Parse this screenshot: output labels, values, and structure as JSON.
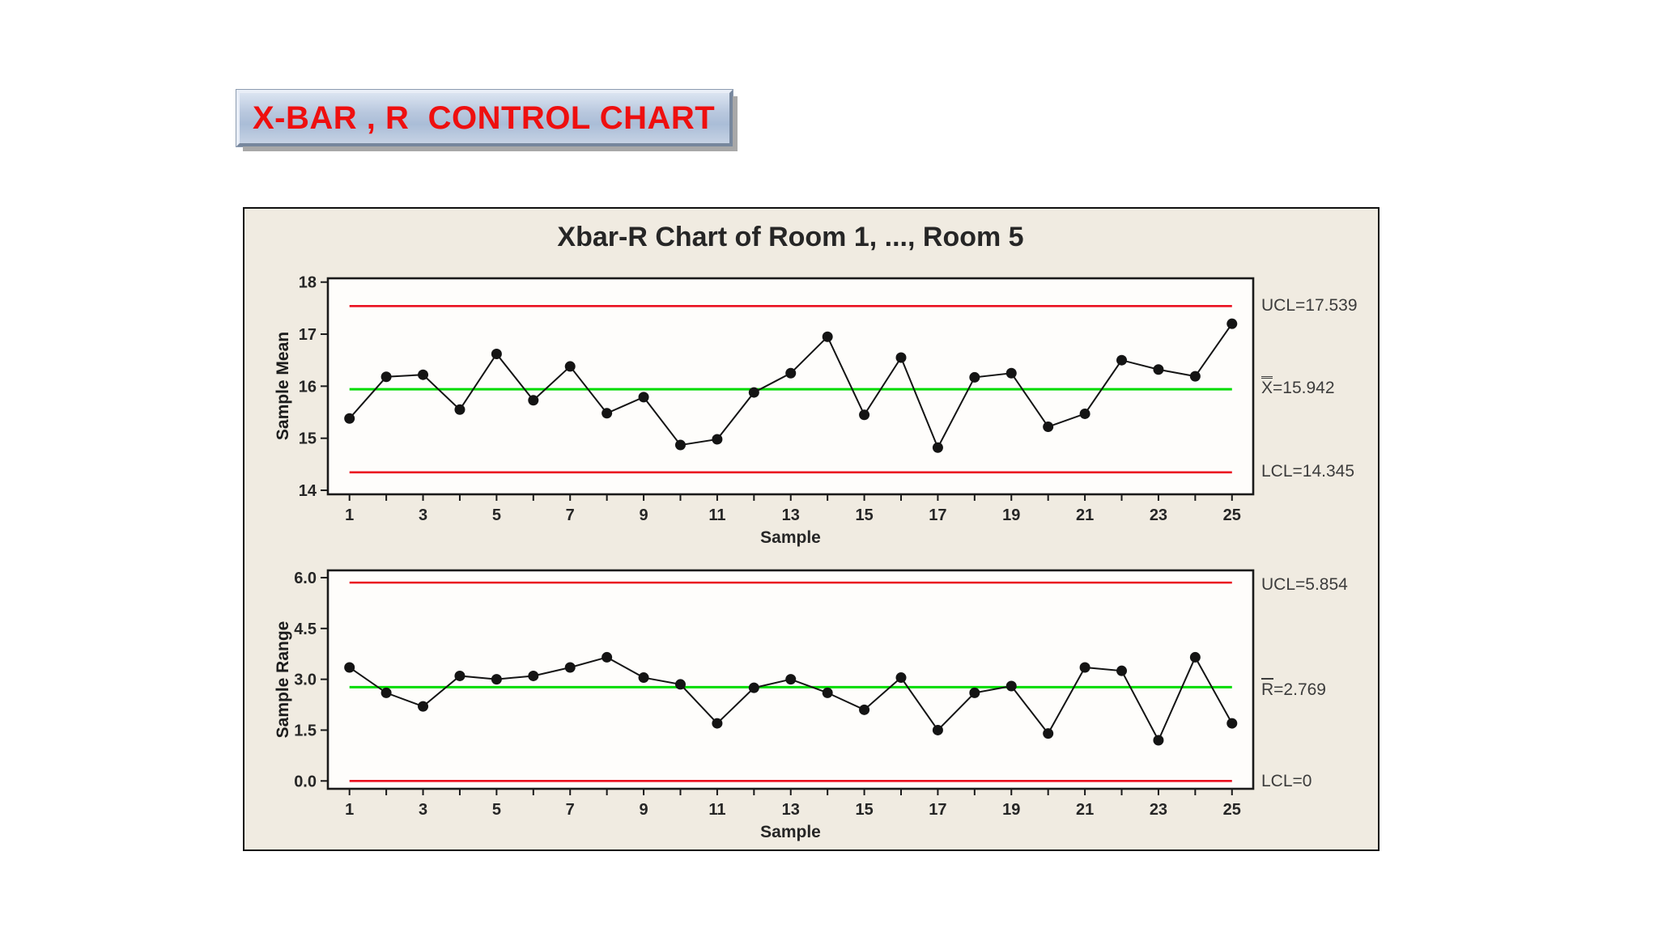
{
  "banner": {
    "title": "X-BAR , R  CONTROL CHART"
  },
  "figure_title": "Xbar-R Chart of Room 1, ..., Room 5",
  "colors": {
    "limit_line": "#ea1020",
    "center_line": "#00dc00",
    "series": "#141414",
    "figure_bg": "#f0ebe1",
    "plot_bg": "#fefdfb",
    "frame": "#1a1a1a",
    "banner_text": "#ee0f0f",
    "tick_text": "#262626",
    "annotation_text": "#3c3c3c"
  },
  "chart_data": [
    {
      "type": "line",
      "name": "xbar-chart",
      "title": "Xbar-R Chart of Room 1, ..., Room 5",
      "ylabel": "Sample Mean",
      "xlabel": "Sample",
      "x": [
        1,
        2,
        3,
        4,
        5,
        6,
        7,
        8,
        9,
        10,
        11,
        12,
        13,
        14,
        15,
        16,
        17,
        18,
        19,
        20,
        21,
        22,
        23,
        24,
        25
      ],
      "values": [
        15.38,
        16.18,
        16.22,
        15.55,
        16.62,
        15.73,
        16.38,
        15.48,
        15.79,
        14.87,
        14.98,
        15.88,
        16.25,
        16.95,
        15.45,
        16.55,
        14.82,
        16.17,
        16.25,
        15.22,
        15.47,
        16.5,
        16.32,
        16.19,
        17.2
      ],
      "ylim": [
        14,
        18
      ],
      "ytick_values": [
        18,
        17,
        16,
        15,
        14
      ],
      "ytick_labels": [
        "18",
        "17",
        "16",
        "15",
        "14"
      ],
      "xticks_labeled": [
        1,
        3,
        5,
        7,
        9,
        11,
        13,
        15,
        17,
        19,
        21,
        23,
        25
      ],
      "ucl": 17.539,
      "center": 15.942,
      "lcl": 14.345,
      "legend_position": "right",
      "grid": false,
      "annotations": {
        "ucl_label": "UCL=17.539",
        "center_prefix": "X",
        "center_bars": 2,
        "center_rest": "=15.942",
        "lcl_label": "LCL=14.345"
      }
    },
    {
      "type": "line",
      "name": "r-chart",
      "title": "",
      "ylabel": "Sample Range",
      "xlabel": "Sample",
      "x": [
        1,
        2,
        3,
        4,
        5,
        6,
        7,
        8,
        9,
        10,
        11,
        12,
        13,
        14,
        15,
        16,
        17,
        18,
        19,
        20,
        21,
        22,
        23,
        24,
        25
      ],
      "values": [
        3.35,
        2.6,
        2.2,
        3.1,
        3.0,
        3.1,
        3.35,
        3.65,
        3.05,
        2.85,
        1.7,
        2.75,
        3.0,
        2.6,
        2.1,
        3.05,
        1.5,
        2.6,
        2.8,
        1.4,
        3.35,
        3.25,
        1.2,
        3.65,
        1.7
      ],
      "ylim": [
        0,
        6
      ],
      "ytick_values": [
        6.0,
        4.5,
        3.0,
        1.5,
        0.0
      ],
      "ytick_labels": [
        "6.0",
        "4.5",
        "3.0",
        "1.5",
        "0.0"
      ],
      "xticks_labeled": [
        1,
        3,
        5,
        7,
        9,
        11,
        13,
        15,
        17,
        19,
        21,
        23,
        25
      ],
      "ucl": 5.854,
      "center": 2.769,
      "lcl": 0,
      "legend_position": "right",
      "grid": false,
      "annotations": {
        "ucl_label": "UCL=5.854",
        "center_prefix": "R",
        "center_bars": 1,
        "center_rest": "=2.769",
        "lcl_label": "LCL=0"
      }
    }
  ]
}
